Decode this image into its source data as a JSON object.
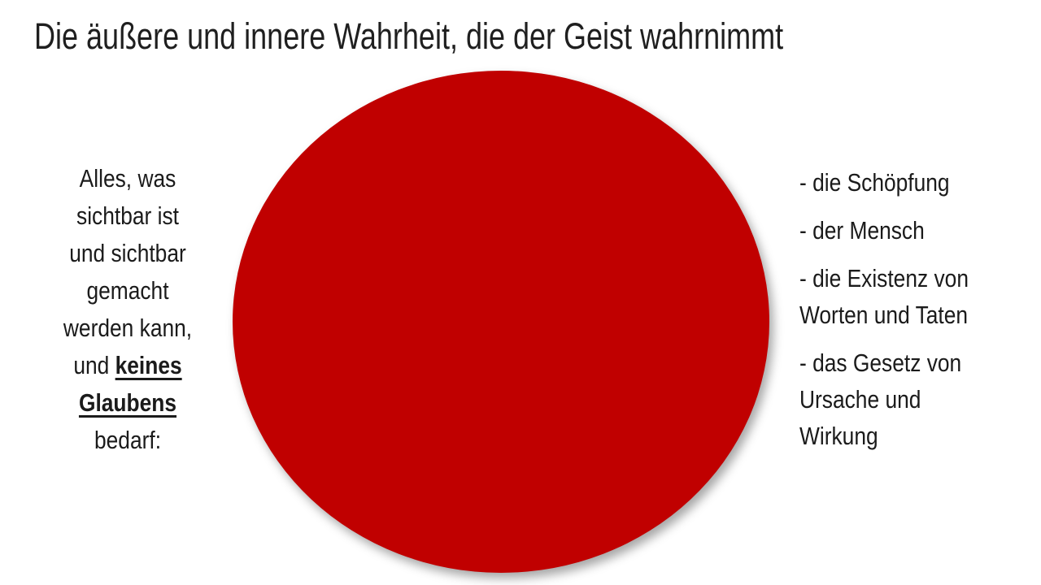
{
  "slide": {
    "title": "Die äußere und innere Wahrheit, die der Geist wahrnimmt",
    "background_color": "#FFFFFF",
    "text_color": "#1B1B1B"
  },
  "shape": {
    "kind": "circle",
    "fill": "#C00000"
  },
  "left_block": {
    "lines": [
      "Alles, was",
      "sichtbar ist",
      "und sichtbar",
      "gemacht",
      "werden kann,"
    ],
    "mixed_line": {
      "prefix": "und ",
      "emphasis": "keines"
    },
    "emphasis_line": "Glaubens",
    "closing_line": "bedarf:"
  },
  "right_list": {
    "items": [
      {
        "lines": [
          "- die Schöpfung"
        ]
      },
      {
        "lines": [
          "- der Mensch"
        ]
      },
      {
        "lines": [
          "- die Existenz von",
          "Worten und Taten"
        ]
      },
      {
        "lines": [
          "- das Gesetz von",
          "Ursache und",
          "Wirkung"
        ]
      }
    ]
  }
}
